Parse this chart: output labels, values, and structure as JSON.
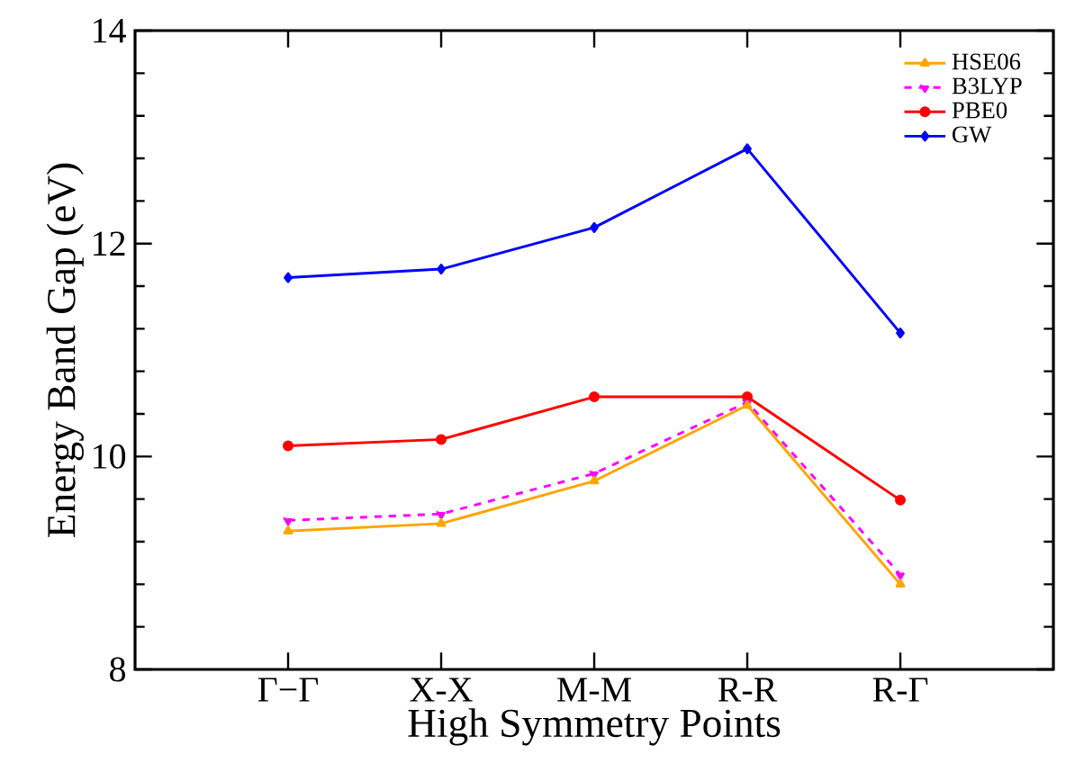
{
  "chart_data": {
    "type": "line",
    "xlabel": "High Symmetry Points",
    "ylabel": "Energy Band Gap (eV)",
    "categories": [
      "Γ−Γ",
      "X-X",
      "M-M",
      "R-R",
      "R-Γ"
    ],
    "series": [
      {
        "name": "HSE06",
        "color": "#ffa500",
        "marker": "triangle",
        "line_style": "solid",
        "values": [
          9.3,
          9.37,
          9.77,
          10.48,
          8.8
        ]
      },
      {
        "name": "B3LYP",
        "color": "#ff00ff",
        "marker": "triangle-down",
        "line_style": "dashed",
        "values": [
          9.4,
          9.46,
          9.84,
          10.51,
          8.89
        ]
      },
      {
        "name": "PBE0",
        "color": "#ff0000",
        "marker": "circle",
        "line_style": "solid",
        "values": [
          10.1,
          10.16,
          10.56,
          10.56,
          9.59
        ]
      },
      {
        "name": "GW",
        "color": "#0000ff",
        "marker": "diamond",
        "line_style": "solid",
        "values": [
          11.68,
          11.76,
          12.15,
          12.89,
          11.16
        ]
      }
    ],
    "ylim": [
      8,
      14
    ],
    "yticks": [
      8,
      10,
      12,
      14
    ],
    "grid": false,
    "legend": "top right"
  }
}
